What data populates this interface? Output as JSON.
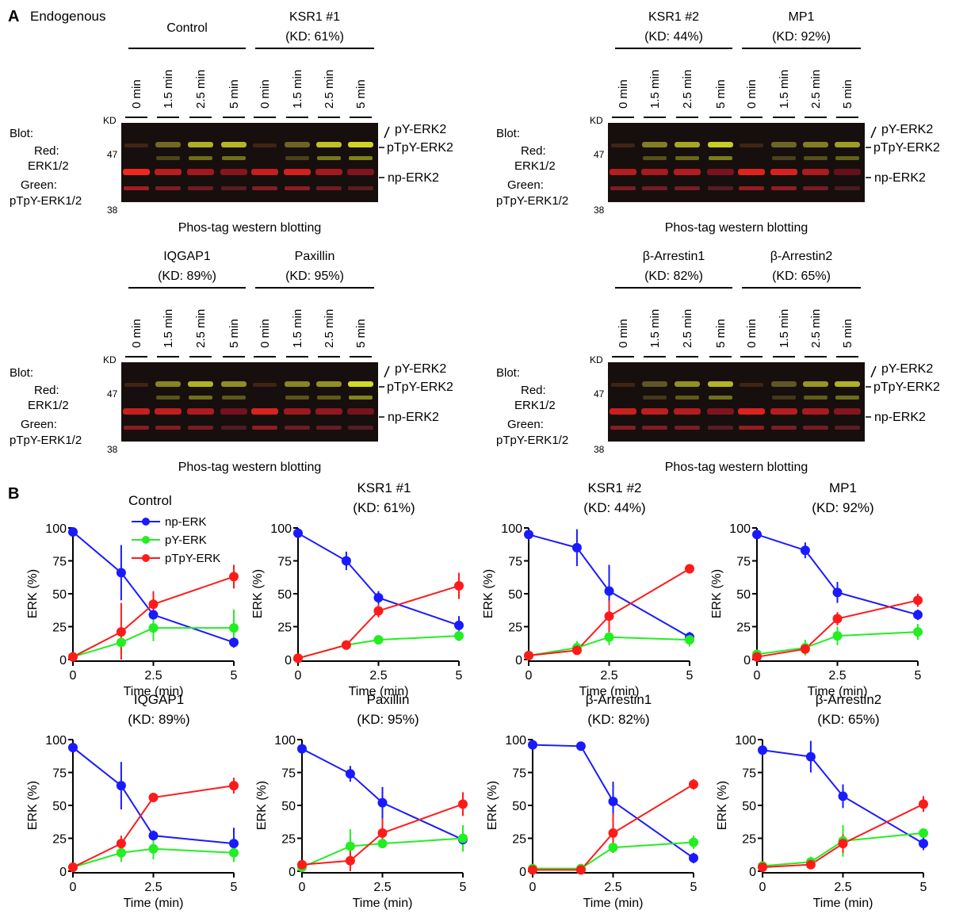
{
  "panel_a": {
    "letter": "A",
    "label": "Endogenous",
    "lane_labels": [
      "0 min",
      "1.5 min",
      "2.5 min",
      "5 min"
    ],
    "kd_label": "KD",
    "mw_high": "47",
    "mw_low": "38",
    "blot_labels": [
      "Blot:",
      "Red:",
      "ERK1/2",
      "Green:",
      "pTpY-ERK1/2"
    ],
    "band_labels": [
      "pY-ERK2",
      "pTpY-ERK2",
      "np-ERK2"
    ],
    "caption": "Phos-tag western blotting",
    "blots": [
      {
        "groups": [
          {
            "name": "Control",
            "kd": ""
          },
          {
            "name": "KSR1 #1",
            "kd": "(KD: 61%)"
          }
        ]
      },
      {
        "groups": [
          {
            "name": "KSR1 #2",
            "kd": "(KD:  44%)"
          },
          {
            "name": "MP1",
            "kd": "(KD:  92%)"
          }
        ]
      },
      {
        "groups": [
          {
            "name": "IQGAP1",
            "kd": "(KD: 89%)"
          },
          {
            "name": "Paxillin",
            "kd": "(KD: 95%)"
          }
        ]
      },
      {
        "groups": [
          {
            "name": "β-Arrestin1",
            "kd": "(KD: 82%)"
          },
          {
            "name": "β-Arrestin2",
            "kd": "(KD: 65%)"
          }
        ]
      }
    ]
  },
  "panel_b": {
    "letter": "B"
  },
  "colors": {
    "np-ERK": "#1a1aff",
    "pY-ERK": "#22ee22",
    "pTpY-ERK": "#ff1a1a"
  },
  "chart_data": [
    {
      "type": "line",
      "title": "Control",
      "subtitle": "",
      "xlabel": "Time (min)",
      "ylabel": "ERK (%)",
      "xlim": [
        0,
        5
      ],
      "ylim": [
        0,
        100
      ],
      "xticks": [
        0,
        2.5,
        5
      ],
      "yticks": [
        0,
        25,
        50,
        75,
        100
      ],
      "x": [
        0,
        1.5,
        2.5,
        5
      ],
      "legend": true,
      "series": [
        {
          "name": "np-ERK",
          "values": [
            97,
            66,
            34,
            13
          ],
          "errors": [
            2,
            21,
            4,
            4
          ]
        },
        {
          "name": "pY-ERK",
          "values": [
            2,
            13,
            24,
            24
          ],
          "errors": [
            1,
            8,
            10,
            14
          ]
        },
        {
          "name": "pTpY-ERK",
          "values": [
            2,
            21,
            42,
            63
          ],
          "errors": [
            1,
            22,
            10,
            9
          ]
        }
      ]
    },
    {
      "type": "line",
      "title": "KSR1 #1",
      "subtitle": "(KD: 61%)",
      "xlabel": "Time (min)",
      "ylabel": "ERK (%)",
      "xlim": [
        0,
        5
      ],
      "ylim": [
        0,
        100
      ],
      "xticks": [
        0,
        2.5,
        5
      ],
      "yticks": [
        0,
        25,
        50,
        75,
        100
      ],
      "x": [
        0,
        1.5,
        2.5,
        5
      ],
      "legend": false,
      "series": [
        {
          "name": "np-ERK",
          "values": [
            96,
            75,
            47,
            26
          ],
          "errors": [
            2,
            7,
            5,
            7
          ]
        },
        {
          "name": "pY-ERK",
          "values": [
            1,
            11,
            15,
            18
          ],
          "errors": [
            1,
            2,
            2,
            4
          ]
        },
        {
          "name": "pTpY-ERK",
          "values": [
            1,
            11,
            37,
            56
          ],
          "errors": [
            1,
            3,
            5,
            10
          ]
        }
      ]
    },
    {
      "type": "line",
      "title": "KSR1 #2",
      "subtitle": "(KD:  44%)",
      "xlabel": "Time (min)",
      "ylabel": "ERK (%)",
      "xlim": [
        0,
        5
      ],
      "ylim": [
        0,
        100
      ],
      "xticks": [
        0,
        2.5,
        5
      ],
      "yticks": [
        0,
        25,
        50,
        75,
        100
      ],
      "x": [
        0,
        1.5,
        2.5,
        5
      ],
      "legend": false,
      "series": [
        {
          "name": "np-ERK",
          "values": [
            95,
            85,
            52,
            17
          ],
          "errors": [
            2,
            14,
            20,
            4
          ]
        },
        {
          "name": "pY-ERK",
          "values": [
            3,
            9,
            17,
            15
          ],
          "errors": [
            1,
            5,
            6,
            5
          ]
        },
        {
          "name": "pTpY-ERK",
          "values": [
            3,
            7,
            33,
            69
          ],
          "errors": [
            1,
            3,
            12,
            2
          ]
        }
      ]
    },
    {
      "type": "line",
      "title": "MP1",
      "subtitle": "(KD:  92%)",
      "xlabel": "Time (min)",
      "ylabel": "ERK (%)",
      "xlim": [
        0,
        5
      ],
      "ylim": [
        0,
        100
      ],
      "xticks": [
        0,
        2.5,
        5
      ],
      "yticks": [
        0,
        25,
        50,
        75,
        100
      ],
      "x": [
        0,
        1.5,
        2.5,
        5
      ],
      "legend": false,
      "series": [
        {
          "name": "np-ERK",
          "values": [
            95,
            83,
            51,
            34
          ],
          "errors": [
            2,
            6,
            8,
            4
          ]
        },
        {
          "name": "pY-ERK",
          "values": [
            4,
            9,
            18,
            21
          ],
          "errors": [
            2,
            6,
            7,
            6
          ]
        },
        {
          "name": "pTpY-ERK",
          "values": [
            2,
            8,
            31,
            45
          ],
          "errors": [
            1,
            2,
            5,
            5
          ]
        }
      ]
    },
    {
      "type": "line",
      "title": "IQGAP1",
      "subtitle": "(KD: 89%)",
      "xlabel": "Time (min)",
      "ylabel": "ERK (%)",
      "xlim": [
        0,
        5
      ],
      "ylim": [
        0,
        100
      ],
      "xticks": [
        0,
        2.5,
        5
      ],
      "yticks": [
        0,
        25,
        50,
        75,
        100
      ],
      "x": [
        0,
        1.5,
        2.5,
        5
      ],
      "legend": false,
      "series": [
        {
          "name": "np-ERK",
          "values": [
            94,
            65,
            27,
            21
          ],
          "errors": [
            3,
            18,
            4,
            12
          ]
        },
        {
          "name": "pY-ERK",
          "values": [
            3,
            14,
            17,
            14
          ],
          "errors": [
            1,
            7,
            8,
            7
          ]
        },
        {
          "name": "pTpY-ERK",
          "values": [
            3,
            21,
            56,
            65
          ],
          "errors": [
            1,
            6,
            3,
            6
          ]
        }
      ]
    },
    {
      "type": "line",
      "title": "Paxillin",
      "subtitle": "(KD: 95%)",
      "xlabel": "Time (min)",
      "ylabel": "ERK (%)",
      "xlim": [
        0,
        5
      ],
      "ylim": [
        0,
        100
      ],
      "xticks": [
        0,
        2.5,
        5
      ],
      "yticks": [
        0,
        25,
        50,
        75,
        100
      ],
      "x": [
        0,
        1.5,
        2.5,
        5
      ],
      "legend": false,
      "series": [
        {
          "name": "np-ERK",
          "values": [
            93,
            74,
            52,
            24
          ],
          "errors": [
            3,
            6,
            12,
            9
          ]
        },
        {
          "name": "pY-ERK",
          "values": [
            3,
            19,
            21,
            25
          ],
          "errors": [
            1,
            13,
            3,
            10
          ]
        },
        {
          "name": "pTpY-ERK",
          "values": [
            5,
            8,
            29,
            51
          ],
          "errors": [
            2,
            10,
            11,
            9
          ]
        }
      ]
    },
    {
      "type": "line",
      "title": "β-Arrestin1",
      "subtitle": "(KD: 82%)",
      "xlabel": "Time (min)",
      "ylabel": "ERK (%)",
      "xlim": [
        0,
        5
      ],
      "ylim": [
        0,
        100
      ],
      "xticks": [
        0,
        2.5,
        5
      ],
      "yticks": [
        0,
        25,
        50,
        75,
        100
      ],
      "x": [
        0,
        1.5,
        2.5,
        5
      ],
      "legend": false,
      "series": [
        {
          "name": "np-ERK",
          "values": [
            96,
            95,
            53,
            10
          ],
          "errors": [
            2,
            2,
            15,
            4
          ]
        },
        {
          "name": "pY-ERK",
          "values": [
            2,
            2,
            18,
            22
          ],
          "errors": [
            1,
            1,
            4,
            5
          ]
        },
        {
          "name": "pTpY-ERK",
          "values": [
            1,
            1,
            29,
            66
          ],
          "errors": [
            1,
            1,
            15,
            4
          ]
        }
      ]
    },
    {
      "type": "line",
      "title": "β-Arrestin2",
      "subtitle": "(KD: 65%)",
      "xlabel": "Time (min)",
      "ylabel": "ERK (%)",
      "xlim": [
        0,
        5
      ],
      "ylim": [
        0,
        100
      ],
      "xticks": [
        0,
        2.5,
        5
      ],
      "yticks": [
        0,
        25,
        50,
        75,
        100
      ],
      "x": [
        0,
        1.5,
        2.5,
        5
      ],
      "legend": false,
      "series": [
        {
          "name": "np-ERK",
          "values": [
            92,
            87,
            57,
            21
          ],
          "errors": [
            4,
            12,
            9,
            5
          ]
        },
        {
          "name": "pY-ERK",
          "values": [
            4,
            7,
            23,
            29
          ],
          "errors": [
            2,
            4,
            12,
            3
          ]
        },
        {
          "name": "pTpY-ERK",
          "values": [
            3,
            5,
            21,
            51
          ],
          "errors": [
            1,
            3,
            7,
            6
          ]
        }
      ]
    }
  ]
}
